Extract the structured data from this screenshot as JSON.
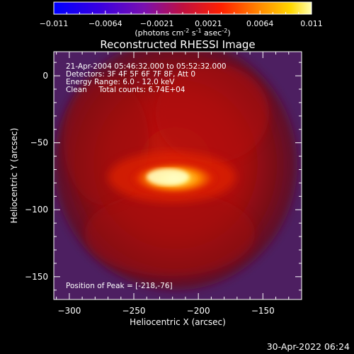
{
  "colorbar": {
    "ticks": [
      "-0.011",
      "-0.0064",
      "-0.0021",
      "0.0021",
      "0.0064",
      "0.011"
    ],
    "label_main": "(photons cm",
    "label_exp1": "-2",
    "label_mid": " s",
    "label_exp2": "-1",
    "label_end": " asec",
    "label_exp3": "-2",
    "label_close": ")"
  },
  "chart_data": {
    "type": "heatmap",
    "title": "Reconstructed RHESSI Image",
    "xlabel": "Heliocentric X (arcsec)",
    "ylabel": "Heliocentric Y (arcsec)",
    "xlim": [
      -312,
      -120
    ],
    "ylim": [
      -167,
      18
    ],
    "xticks": [
      -300,
      -250,
      -200,
      -150
    ],
    "yticks": [
      0,
      -50,
      -100,
      -150
    ],
    "color_range": [
      -0.011,
      0.011
    ],
    "annotations": [
      "21-Apr-2004 05:46:32.000 to 05:52:32.000",
      "Detectors: 3F 4F 5F 6F 7F 8F, Att 0",
      "Energy Range: 6.0 - 12.0 keV",
      "Clean     Total counts: 6.74E+04"
    ],
    "peak_label": "Position of Peak = [-218,-76]",
    "peak": [
      -218,
      -76
    ]
  },
  "timestamp": "30-Apr-2022 06:24"
}
